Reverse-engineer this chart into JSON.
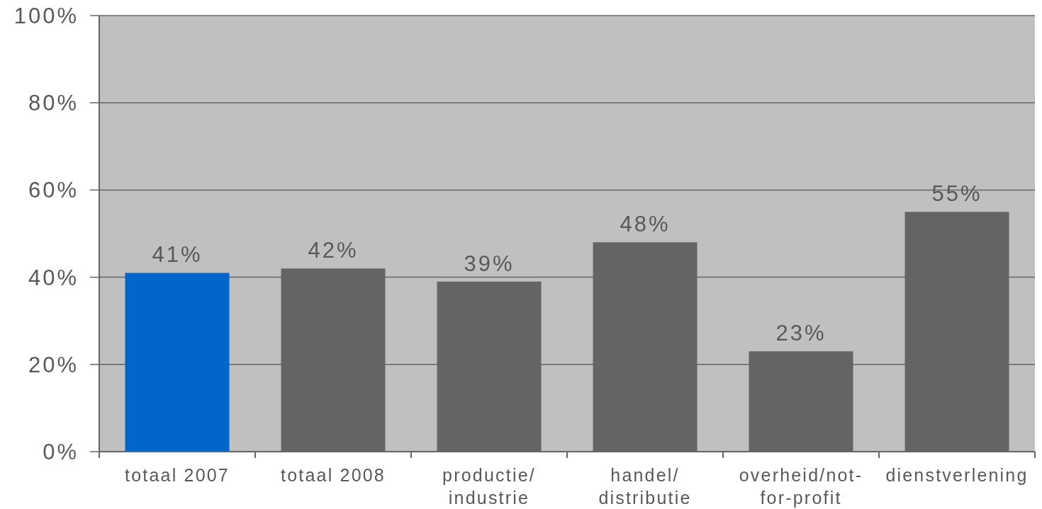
{
  "chart_data": {
    "type": "bar",
    "categories": [
      "totaal 2007",
      "totaal 2008",
      "productie/industrie",
      "handel/distributie",
      "overheid/not-for-profit",
      "dienstverlening"
    ],
    "values": [
      41,
      42,
      39,
      48,
      23,
      55
    ],
    "colors": [
      "#0066cc",
      "#646464",
      "#646464",
      "#646464",
      "#646464",
      "#646464"
    ],
    "value_labels": [
      "41%",
      "42%",
      "39%",
      "48%",
      "23%",
      "55%"
    ],
    "ylim": [
      0,
      100
    ],
    "yticks": [
      {
        "value": 0,
        "label": "0%"
      },
      {
        "value": 20,
        "label": "20%"
      },
      {
        "value": 40,
        "label": "40%"
      },
      {
        "value": 60,
        "label": "60%"
      },
      {
        "value": 80,
        "label": "80%"
      },
      {
        "value": 100,
        "label": "100%"
      }
    ],
    "grid": "y"
  }
}
